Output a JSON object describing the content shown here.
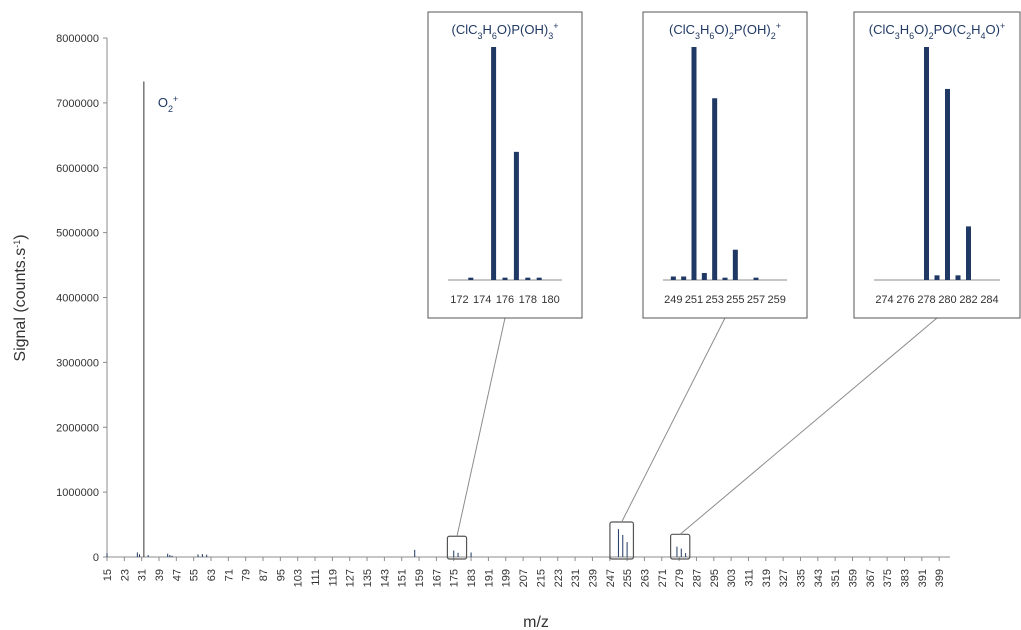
{
  "chart_data": [
    {
      "type": "bar",
      "xlabel": "m/z",
      "ylabel": "Signal (counts.s",
      "ylabel_sup": "-1",
      "ylabel_close": ")",
      "xlim": [
        15,
        404
      ],
      "ylim": [
        0,
        8000000
      ],
      "yticks": [
        "0",
        "1000000",
        "2000000",
        "3000000",
        "4000000",
        "5000000",
        "6000000",
        "7000000",
        "8000000"
      ],
      "yticks_values": [
        0,
        1000000,
        2000000,
        3000000,
        4000000,
        5000000,
        6000000,
        7000000,
        8000000
      ],
      "xticks": [
        "15",
        "23",
        "31",
        "39",
        "47",
        "55",
        "63",
        "71",
        "79",
        "87",
        "95",
        "103",
        "111",
        "119",
        "127",
        "135",
        "143",
        "151",
        "159",
        "167",
        "175",
        "183",
        "191",
        "199",
        "207",
        "215",
        "223",
        "231",
        "239",
        "247",
        "255",
        "263",
        "271",
        "279",
        "287",
        "295",
        "303",
        "311",
        "319",
        "327",
        "335",
        "343",
        "351",
        "359",
        "367",
        "375",
        "383",
        "391",
        "399"
      ],
      "annotation": {
        "text": "O",
        "sub": "2",
        "sup": "+",
        "x": 32,
        "y": 7000000
      },
      "bars": [
        {
          "x": 15,
          "y": 60000
        },
        {
          "x": 29,
          "y": 70000
        },
        {
          "x": 30,
          "y": 40000
        },
        {
          "x": 32,
          "y": 7330000
        },
        {
          "x": 34,
          "y": 30000
        },
        {
          "x": 43,
          "y": 50000
        },
        {
          "x": 44,
          "y": 30000
        },
        {
          "x": 45,
          "y": 20000
        },
        {
          "x": 57,
          "y": 40000
        },
        {
          "x": 59,
          "y": 45000
        },
        {
          "x": 61,
          "y": 35000
        },
        {
          "x": 157,
          "y": 110000
        },
        {
          "x": 175,
          "y": 100000
        },
        {
          "x": 177,
          "y": 65000
        },
        {
          "x": 183,
          "y": 70000
        },
        {
          "x": 251,
          "y": 430000
        },
        {
          "x": 253,
          "y": 340000
        },
        {
          "x": 255,
          "y": 230000
        },
        {
          "x": 278,
          "y": 160000
        },
        {
          "x": 280,
          "y": 130000
        },
        {
          "x": 282,
          "y": 60000
        }
      ],
      "color": "#1f3864",
      "zoom_boxes": [
        {
          "x1": 173,
          "x2": 180,
          "y": 320000,
          "inset": 0
        },
        {
          "x1": 248,
          "x2": 257,
          "y": 540000,
          "inset": 1
        },
        {
          "x1": 276,
          "x2": 283,
          "y": 350000,
          "inset": 2
        }
      ]
    },
    {
      "type": "bar",
      "title_parts": [
        [
          "(ClC",
          "n"
        ],
        [
          "3",
          "sub"
        ],
        [
          "H",
          "n"
        ],
        [
          "6",
          "sub"
        ],
        [
          "O)P(OH)",
          "n"
        ],
        [
          "3",
          "sub"
        ],
        [
          "+",
          "sup"
        ]
      ],
      "xlim": [
        171,
        181
      ],
      "xticks": [
        "172",
        "174",
        "176",
        "178",
        "180"
      ],
      "xticks_values": [
        172,
        174,
        176,
        178,
        180
      ],
      "bars": [
        {
          "x": 173,
          "y": 0.01
        },
        {
          "x": 175,
          "y": 1.0
        },
        {
          "x": 176,
          "y": 0.01
        },
        {
          "x": 177,
          "y": 0.55
        },
        {
          "x": 178,
          "y": 0.01
        },
        {
          "x": 179,
          "y": 0.01
        }
      ]
    },
    {
      "type": "bar",
      "title_parts": [
        [
          "(ClC",
          "n"
        ],
        [
          "3",
          "sub"
        ],
        [
          "H",
          "n"
        ],
        [
          "6",
          "sub"
        ],
        [
          "O)",
          "n"
        ],
        [
          "2",
          "sub"
        ],
        [
          "P(OH)",
          "n"
        ],
        [
          "2",
          "sub"
        ],
        [
          "+",
          "sup"
        ]
      ],
      "xlim": [
        248,
        260
      ],
      "xticks": [
        "249",
        "251",
        "253",
        "255",
        "257",
        "259"
      ],
      "xticks_values": [
        249,
        251,
        253,
        255,
        257,
        259
      ],
      "bars": [
        {
          "x": 249,
          "y": 0.015
        },
        {
          "x": 250,
          "y": 0.015
        },
        {
          "x": 251,
          "y": 1.0
        },
        {
          "x": 252,
          "y": 0.03
        },
        {
          "x": 253,
          "y": 0.78
        },
        {
          "x": 254,
          "y": 0.01
        },
        {
          "x": 255,
          "y": 0.13
        },
        {
          "x": 257,
          "y": 0.01
        }
      ]
    },
    {
      "type": "bar",
      "title_parts": [
        [
          "(ClC",
          "n"
        ],
        [
          "3",
          "sub"
        ],
        [
          "H",
          "n"
        ],
        [
          "6",
          "sub"
        ],
        [
          "O)",
          "n"
        ],
        [
          "2",
          "sub"
        ],
        [
          "PO(C",
          "n"
        ],
        [
          "2",
          "sub"
        ],
        [
          "H",
          "n"
        ],
        [
          "4",
          "sub"
        ],
        [
          "O)",
          "n"
        ],
        [
          "+",
          "sup"
        ]
      ],
      "xlim": [
        273,
        285
      ],
      "xticks": [
        "274",
        "276",
        "278",
        "280",
        "282",
        "284"
      ],
      "xticks_values": [
        274,
        276,
        278,
        280,
        282,
        284
      ],
      "bars": [
        {
          "x": 278,
          "y": 1.0
        },
        {
          "x": 279,
          "y": 0.02
        },
        {
          "x": 280,
          "y": 0.82
        },
        {
          "x": 281,
          "y": 0.02
        },
        {
          "x": 282,
          "y": 0.23
        }
      ]
    }
  ]
}
